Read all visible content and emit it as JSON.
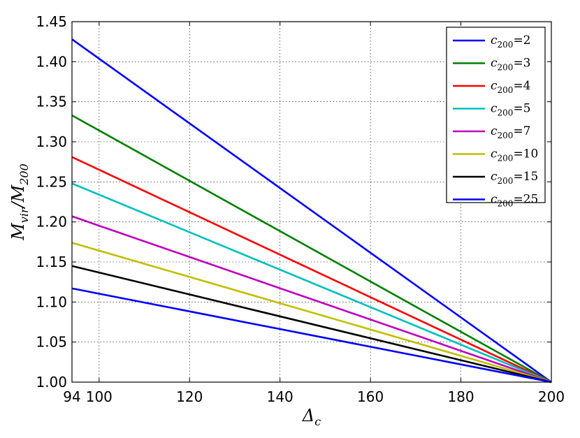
{
  "chart_data": {
    "type": "line",
    "xlabel": "Δ_c",
    "ylabel": "M_vir/M_200",
    "xlim": [
      94,
      200
    ],
    "ylim": [
      1.0,
      1.45
    ],
    "x_ticks": [
      "94",
      "100",
      "120",
      "140",
      "160",
      "180",
      "200"
    ],
    "y_ticks": [
      "1.00",
      "1.05",
      "1.10",
      "1.15",
      "1.20",
      "1.25",
      "1.30",
      "1.35",
      "1.40",
      "1.45"
    ],
    "grid": true,
    "legend_position": "top-right",
    "series": [
      {
        "name": "c200 = 2",
        "sub": "200",
        "value": "2",
        "color": "#0000ff",
        "x": [
          94,
          200
        ],
        "y": [
          1.428,
          1.0
        ]
      },
      {
        "name": "c200 = 3",
        "sub": "200",
        "value": "3",
        "color": "#008000",
        "x": [
          94,
          200
        ],
        "y": [
          1.333,
          1.0
        ]
      },
      {
        "name": "c200 = 4",
        "sub": "200",
        "value": "4",
        "color": "#ff0000",
        "x": [
          94,
          200
        ],
        "y": [
          1.281,
          1.0
        ]
      },
      {
        "name": "c200 = 5",
        "sub": "200",
        "value": "5",
        "color": "#00bfbf",
        "x": [
          94,
          200
        ],
        "y": [
          1.248,
          1.0
        ]
      },
      {
        "name": "c200 = 7",
        "sub": "200",
        "value": "7",
        "color": "#bf00bf",
        "x": [
          94,
          200
        ],
        "y": [
          1.207,
          1.0
        ]
      },
      {
        "name": "c200 = 10",
        "sub": "200",
        "value": "10",
        "color": "#bfbf00",
        "x": [
          94,
          200
        ],
        "y": [
          1.174,
          1.0
        ]
      },
      {
        "name": "c200 = 15",
        "sub": "200",
        "value": "15",
        "color": "#000000",
        "x": [
          94,
          200
        ],
        "y": [
          1.145,
          1.0
        ]
      },
      {
        "name": "c200 = 25",
        "sub": "200",
        "value": "25",
        "color": "#0000ff",
        "x": [
          94,
          200
        ],
        "y": [
          1.117,
          1.0
        ]
      }
    ]
  }
}
